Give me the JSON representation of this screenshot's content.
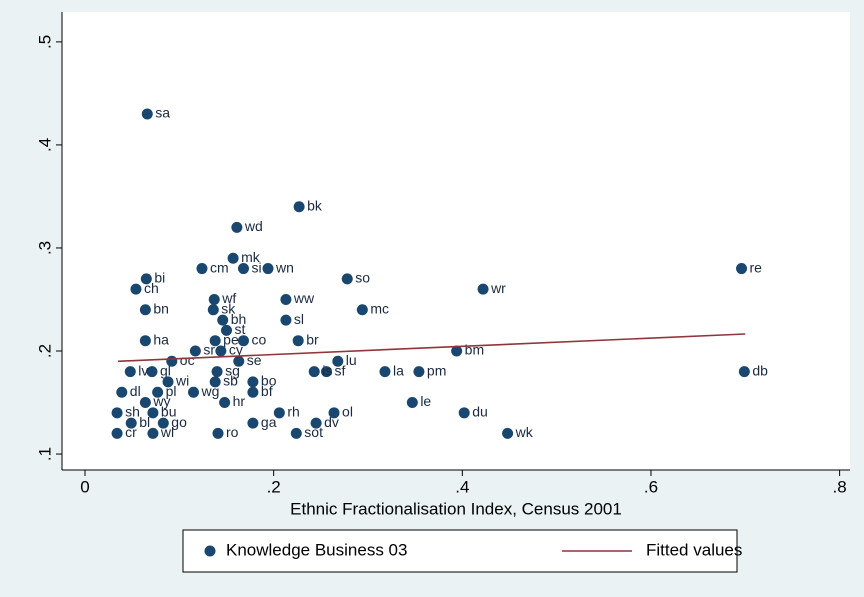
{
  "chart_data": {
    "type": "scatter",
    "xlabel": "Ethnic Fractionalisation Index, Census 2001",
    "xlim": [
      -0.0244,
      0.811
    ],
    "ylim": [
      0.0845,
      0.529
    ],
    "xticks": [
      0,
      {
        "value": 0.2,
        "label": ".2"
      },
      {
        "value": 0.4,
        "label": ".4"
      },
      {
        "value": 0.6,
        "label": ".6"
      },
      {
        "value": 0.8,
        "label": ".8"
      }
    ],
    "yticks": [
      {
        "value": 0.1,
        "label": ".1"
      },
      {
        "value": 0.2,
        "label": ".2"
      },
      {
        "value": 0.3,
        "label": ".3"
      },
      {
        "value": 0.4,
        "label": ".4"
      },
      {
        "value": 0.5,
        "label": ".5"
      }
    ],
    "series": [
      {
        "name": "Knowledge Business 03",
        "type": "scatter",
        "color": "#1a476f",
        "x": [
          0.066,
          0.227,
          0.161,
          0.157,
          0.124,
          0.168,
          0.194,
          0.278,
          0.696,
          0.422,
          0.065,
          0.054,
          0.137,
          0.213,
          0.064,
          0.136,
          0.294,
          0.146,
          0.213,
          0.15,
          0.226,
          0.168,
          0.138,
          0.064,
          0.394,
          0.268,
          0.163,
          0.144,
          0.117,
          0.699,
          0.318,
          0.354,
          0.256,
          0.243,
          0.14,
          0.071,
          0.178,
          0.138,
          0.088,
          0.178,
          0.115,
          0.077,
          0.039,
          0.347,
          0.148,
          0.064,
          0.264,
          0.402,
          0.206,
          0.072,
          0.034,
          0.178,
          0.245,
          0.083,
          0.049,
          0.448,
          0.224,
          0.141,
          0.072,
          0.034,
          0.048,
          0.092
        ],
        "values": [
          0.43,
          0.34,
          0.32,
          0.29,
          0.28,
          0.28,
          0.28,
          0.27,
          0.28,
          0.26,
          0.27,
          0.26,
          0.25,
          0.25,
          0.24,
          0.24,
          0.24,
          0.23,
          0.23,
          0.22,
          0.21,
          0.21,
          0.21,
          0.21,
          0.2,
          0.19,
          0.19,
          0.2,
          0.2,
          0.18,
          0.18,
          0.18,
          0.18,
          0.18,
          0.18,
          0.18,
          0.17,
          0.17,
          0.17,
          0.16,
          0.16,
          0.16,
          0.16,
          0.15,
          0.15,
          0.15,
          0.14,
          0.14,
          0.14,
          0.14,
          0.14,
          0.13,
          0.13,
          0.13,
          0.13,
          0.12,
          0.12,
          0.12,
          0.12,
          0.12,
          0.18,
          0.19
        ],
        "labels": [
          "sa",
          "bk",
          "wd",
          "mk",
          "cm",
          "si",
          "wn",
          "so",
          "re",
          "wr",
          "bi",
          "ch",
          "wf",
          "ww",
          "bn",
          "sk",
          "mc",
          "bh",
          "sl",
          "st",
          "br",
          "co",
          "pe",
          "ha",
          "bm",
          "lu",
          "se",
          "cy",
          "sr",
          "db",
          "la",
          "pm",
          "sf",
          "is",
          "sg",
          "gl",
          "bo",
          "sb",
          "wi",
          "bf",
          "wg",
          "pl",
          "dl",
          "le",
          "hr",
          "wy",
          "ol",
          "du",
          "rh",
          "bu",
          "sh",
          "ga",
          "dv",
          "go",
          "bl",
          "wk",
          "sot",
          "ro",
          "wl",
          "cr",
          "lv",
          "oc"
        ]
      },
      {
        "name": "Fitted values",
        "type": "line",
        "color": "#90353b",
        "x": [
          0.035,
          0.7
        ],
        "values": [
          0.19,
          0.2165
        ]
      }
    ]
  }
}
